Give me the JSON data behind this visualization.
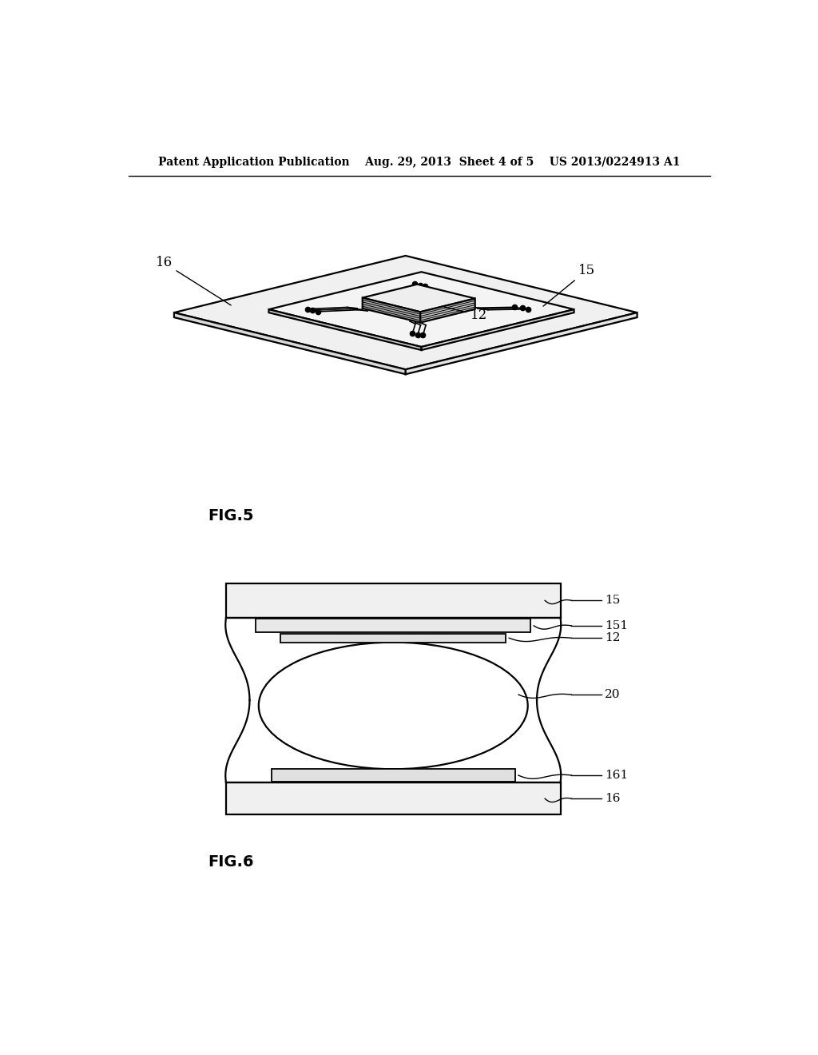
{
  "bg_color": "#ffffff",
  "line_color": "#000000",
  "header": "Patent Application Publication    Aug. 29, 2013  Sheet 4 of 5    US 2013/0224913 A1",
  "fig5_label": "FIG.5",
  "fig6_label": "FIG.6"
}
